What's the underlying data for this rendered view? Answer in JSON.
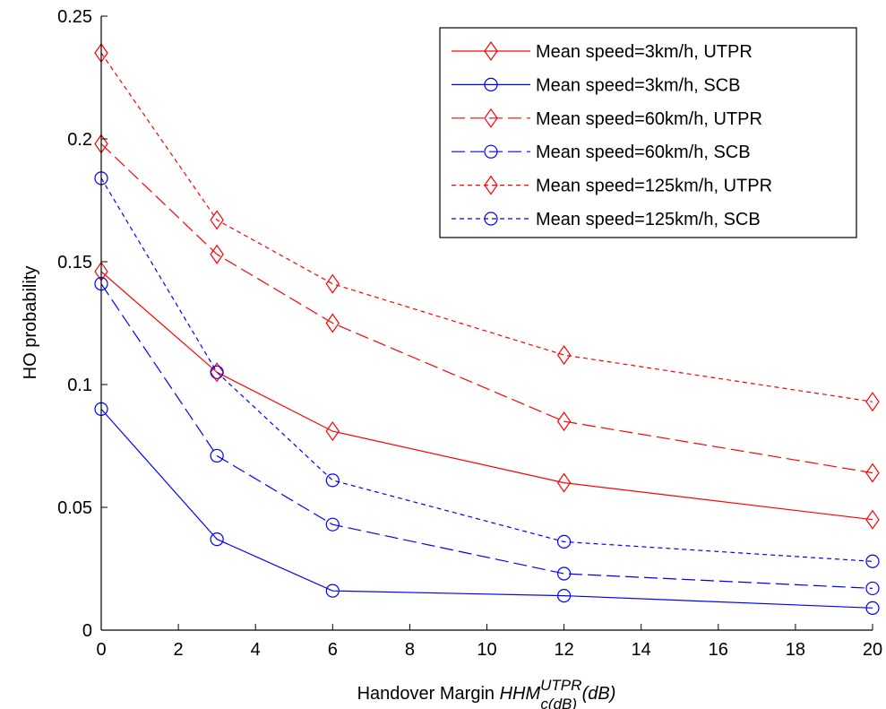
{
  "chart_data": {
    "type": "line",
    "title": "",
    "xlabel": {
      "prefix": "Handover Margin ",
      "symbol": "HHM",
      "superscript": "UTPR",
      "subscript": "c(dB)",
      "suffix": " (dB)"
    },
    "ylabel": "HO probability",
    "xlim": [
      0,
      20
    ],
    "ylim": [
      0,
      0.25
    ],
    "xticks": [
      0,
      2,
      4,
      6,
      8,
      10,
      12,
      14,
      16,
      18,
      20
    ],
    "xtick_labels": [
      "0",
      "2",
      "4",
      "6",
      "8",
      "10",
      "12",
      "14",
      "16",
      "18",
      "20"
    ],
    "yticks": [
      0,
      0.05,
      0.1,
      0.15,
      0.2,
      0.25
    ],
    "ytick_labels": [
      "0",
      "0.05",
      "0.1",
      "0.15",
      "0.2",
      "0.25"
    ],
    "grid": false,
    "legend_position": "top-right",
    "x": [
      0,
      3,
      6,
      12,
      20
    ],
    "series": [
      {
        "name": "Mean speed=3km/h, UTPR",
        "color": "#ff0000",
        "dash": "solid",
        "marker": "diamond",
        "values": [
          0.146,
          0.105,
          0.081,
          0.06,
          0.045
        ]
      },
      {
        "name": "Mean speed=3km/h, SCB",
        "color": "#0000ff",
        "dash": "solid",
        "marker": "circle",
        "values": [
          0.09,
          0.037,
          0.016,
          0.014,
          0.009
        ]
      },
      {
        "name": "Mean speed=60km/h, UTPR",
        "color": "#ff0000",
        "dash": "longdash",
        "marker": "diamond",
        "values": [
          0.198,
          0.153,
          0.125,
          0.085,
          0.064
        ]
      },
      {
        "name": "Mean speed=60km/h, SCB",
        "color": "#0000ff",
        "dash": "longdash",
        "marker": "circle",
        "values": [
          0.141,
          0.071,
          0.043,
          0.023,
          0.017
        ]
      },
      {
        "name": "Mean speed=125km/h, UTPR",
        "color": "#ff0000",
        "dash": "shortdash",
        "marker": "diamond",
        "values": [
          0.235,
          0.167,
          0.141,
          0.112,
          0.093
        ]
      },
      {
        "name": "Mean speed=125km/h, SCB",
        "color": "#0000ff",
        "dash": "shortdash",
        "marker": "circle",
        "values": [
          0.184,
          0.105,
          0.061,
          0.036,
          0.028
        ]
      }
    ]
  }
}
